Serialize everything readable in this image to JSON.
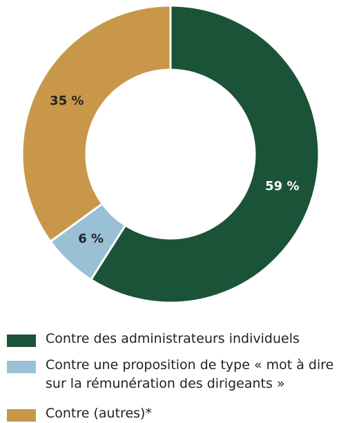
{
  "chart_data": {
    "type": "pie",
    "categories": [
      "Contre des administrateurs individuels",
      "Contre une proposition de type « mot à dire sur la rémunération des dirigeants »",
      "Contre (autres)*"
    ],
    "values": [
      59,
      6,
      35
    ],
    "value_labels": [
      "59 %",
      "6 %",
      "35 %"
    ],
    "colors": [
      "#1a5338",
      "#9ac0d6",
      "#c9974a"
    ],
    "donut": true
  }
}
